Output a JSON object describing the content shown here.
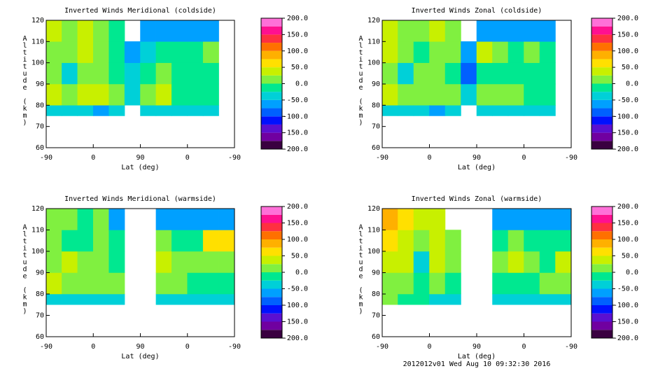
{
  "chart_data": [
    {
      "type": "contour",
      "title": "Inverted Winds Meridional (coldside)",
      "xlabel": "Lat (deg)",
      "ylabel": "Altitude (km)",
      "xlim": [
        0,
        360
      ],
      "xticks": [
        {
          "value": 0,
          "label": "-90"
        },
        {
          "value": 90,
          "label": "0"
        },
        {
          "value": 180,
          "label": "90"
        },
        {
          "value": 270,
          "label": "0"
        },
        {
          "value": 360,
          "label": "-90"
        }
      ],
      "ylim": [
        60,
        120
      ],
      "yticks": [
        60,
        70,
        80,
        90,
        100,
        110,
        120
      ],
      "x_edges": [
        0,
        30,
        60,
        90,
        120,
        150,
        180,
        210,
        240,
        270,
        300,
        330,
        360
      ],
      "y_edges": [
        75,
        80,
        90,
        100,
        110,
        120
      ],
      "z": [
        [
          -50,
          25,
          0,
          0,
          25
        ],
        [
          -50,
          0,
          -50,
          0,
          0
        ],
        [
          -50,
          25,
          0,
          25,
          25
        ],
        [
          -75,
          25,
          0,
          0,
          0
        ],
        [
          -50,
          0,
          -25,
          -25,
          -25
        ],
        [
          null,
          -50,
          -50,
          -75,
          null
        ],
        [
          -50,
          0,
          -25,
          -50,
          -75
        ],
        [
          -50,
          25,
          0,
          -25,
          -75
        ],
        [
          -50,
          -25,
          -25,
          -25,
          -75
        ],
        [
          -50,
          -25,
          -25,
          -25,
          -75
        ],
        [
          -50,
          -25,
          -25,
          0,
          -75
        ],
        [
          null,
          null,
          null,
          null,
          null
        ]
      ],
      "colorbar": {
        "levels": [
          -200,
          -175,
          -150,
          -125,
          -100,
          -75,
          -50,
          -25,
          0,
          25,
          50,
          75,
          100,
          125,
          150,
          175,
          200
        ],
        "colors": [
          "#3a0040",
          "#7000a0",
          "#5a10d0",
          "#0010ff",
          "#0060ff",
          "#00a0ff",
          "#00d0d8",
          "#00e890",
          "#80f040",
          "#c8f000",
          "#ffe000",
          "#ffb000",
          "#ff7000",
          "#ff3040",
          "#ff1090",
          "#ff70d8"
        ],
        "ticks": [
          {
            "value": -200,
            "label": "-200.0"
          },
          {
            "value": -150,
            "label": "-150.0"
          },
          {
            "value": -100,
            "label": "-100.0"
          },
          {
            "value": -50,
            "label": "-50.0"
          },
          {
            "value": 0,
            "label": "0.0"
          },
          {
            "value": 50,
            "label": "50.0"
          },
          {
            "value": 100,
            "label": "100.0"
          },
          {
            "value": 150,
            "label": "150.0"
          },
          {
            "value": 200,
            "label": "200.0"
          }
        ]
      }
    },
    {
      "type": "contour",
      "title": "Inverted Winds Zonal (coldside)",
      "xlabel": "Lat (deg)",
      "ylabel": "Altitude (km)",
      "xlim": [
        0,
        360
      ],
      "xticks": [
        {
          "value": 0,
          "label": "-90"
        },
        {
          "value": 90,
          "label": "0"
        },
        {
          "value": 180,
          "label": "90"
        },
        {
          "value": 270,
          "label": "0"
        },
        {
          "value": 360,
          "label": "-90"
        }
      ],
      "ylim": [
        60,
        120
      ],
      "yticks": [
        60,
        70,
        80,
        90,
        100,
        110,
        120
      ],
      "x_edges": [
        0,
        30,
        60,
        90,
        120,
        150,
        180,
        210,
        240,
        270,
        300,
        330,
        360
      ],
      "y_edges": [
        75,
        80,
        90,
        100,
        110,
        120
      ],
      "z": [
        [
          -50,
          25,
          0,
          25,
          25
        ],
        [
          -50,
          0,
          -50,
          0,
          0
        ],
        [
          -50,
          0,
          0,
          -25,
          0
        ],
        [
          -75,
          0,
          0,
          0,
          25
        ],
        [
          -50,
          0,
          -25,
          0,
          0
        ],
        [
          null,
          -50,
          -100,
          -75,
          null
        ],
        [
          -50,
          0,
          -25,
          25,
          -75
        ],
        [
          -50,
          0,
          -25,
          0,
          -75
        ],
        [
          -50,
          0,
          -25,
          -25,
          -75
        ],
        [
          -50,
          -25,
          -25,
          0,
          -75
        ],
        [
          -50,
          -25,
          -25,
          -25,
          -75
        ],
        [
          null,
          null,
          null,
          null,
          null
        ]
      ],
      "colorbar": {
        "levels": [
          -200,
          -175,
          -150,
          -125,
          -100,
          -75,
          -50,
          -25,
          0,
          25,
          50,
          75,
          100,
          125,
          150,
          175,
          200
        ],
        "colors": [
          "#3a0040",
          "#7000a0",
          "#5a10d0",
          "#0010ff",
          "#0060ff",
          "#00a0ff",
          "#00d0d8",
          "#00e890",
          "#80f040",
          "#c8f000",
          "#ffe000",
          "#ffb000",
          "#ff7000",
          "#ff3040",
          "#ff1090",
          "#ff70d8"
        ],
        "ticks": [
          {
            "value": -200,
            "label": "-200.0"
          },
          {
            "value": -150,
            "label": "-150.0"
          },
          {
            "value": -100,
            "label": "-100.0"
          },
          {
            "value": -50,
            "label": "-50.0"
          },
          {
            "value": 0,
            "label": "0.0"
          },
          {
            "value": 50,
            "label": "50.0"
          },
          {
            "value": 100,
            "label": "100.0"
          },
          {
            "value": 150,
            "label": "150.0"
          },
          {
            "value": 200,
            "label": "200.0"
          }
        ]
      }
    },
    {
      "type": "contour",
      "title": "Inverted Winds Meridional (warmside)",
      "xlabel": "Lat (deg)",
      "ylabel": "Altitude (km)",
      "xlim": [
        0,
        360
      ],
      "xticks": [
        {
          "value": 0,
          "label": "-90"
        },
        {
          "value": 90,
          "label": "0"
        },
        {
          "value": 180,
          "label": "90"
        },
        {
          "value": 270,
          "label": "0"
        },
        {
          "value": 360,
          "label": "-90"
        }
      ],
      "ylim": [
        60,
        120
      ],
      "yticks": [
        60,
        70,
        80,
        90,
        100,
        110,
        120
      ],
      "x_edges": [
        0,
        30,
        60,
        90,
        120,
        150,
        180,
        210,
        240,
        270,
        300,
        330,
        360
      ],
      "y_edges": [
        75,
        80,
        90,
        100,
        110,
        120
      ],
      "z": [
        [
          -50,
          25,
          0,
          0,
          0
        ],
        [
          -50,
          0,
          25,
          -25,
          0
        ],
        [
          -50,
          0,
          0,
          -25,
          -25
        ],
        [
          -50,
          0,
          0,
          0,
          0
        ],
        [
          -50,
          0,
          -25,
          -25,
          -75
        ],
        [
          null,
          null,
          null,
          null,
          null
        ],
        [
          null,
          null,
          null,
          null,
          null
        ],
        [
          -50,
          0,
          25,
          0,
          -75
        ],
        [
          -50,
          0,
          0,
          -25,
          -75
        ],
        [
          -50,
          -25,
          0,
          -25,
          -75
        ],
        [
          -50,
          -25,
          0,
          50,
          -75
        ],
        [
          -50,
          -25,
          0,
          50,
          -75
        ]
      ],
      "colorbar": {
        "levels": [
          -200,
          -175,
          -150,
          -125,
          -100,
          -75,
          -50,
          -25,
          0,
          25,
          50,
          75,
          100,
          125,
          150,
          175,
          200
        ],
        "colors": [
          "#3a0040",
          "#7000a0",
          "#5a10d0",
          "#0010ff",
          "#0060ff",
          "#00a0ff",
          "#00d0d8",
          "#00e890",
          "#80f040",
          "#c8f000",
          "#ffe000",
          "#ffb000",
          "#ff7000",
          "#ff3040",
          "#ff1090",
          "#ff70d8"
        ],
        "ticks": [
          {
            "value": -200,
            "label": "-200.0"
          },
          {
            "value": -150,
            "label": "-150.0"
          },
          {
            "value": -100,
            "label": "-100.0"
          },
          {
            "value": -50,
            "label": "-50.0"
          },
          {
            "value": 0,
            "label": "0.0"
          },
          {
            "value": 50,
            "label": "50.0"
          },
          {
            "value": 100,
            "label": "100.0"
          },
          {
            "value": 150,
            "label": "150.0"
          },
          {
            "value": 200,
            "label": "200.0"
          }
        ]
      }
    },
    {
      "type": "contour",
      "title": "Inverted Winds Zonal (warmside)",
      "xlabel": "Lat (deg)",
      "ylabel": "Altitude (km)",
      "xlim": [
        0,
        360
      ],
      "xticks": [
        {
          "value": 0,
          "label": "-90"
        },
        {
          "value": 90,
          "label": "0"
        },
        {
          "value": 180,
          "label": "90"
        },
        {
          "value": 270,
          "label": "0"
        },
        {
          "value": 360,
          "label": "-90"
        }
      ],
      "ylim": [
        60,
        120
      ],
      "yticks": [
        60,
        70,
        80,
        90,
        100,
        110,
        120
      ],
      "x_edges": [
        0,
        30,
        60,
        90,
        120,
        150,
        180,
        210,
        240,
        270,
        300,
        330,
        360
      ],
      "y_edges": [
        75,
        80,
        90,
        100,
        110,
        120
      ],
      "z": [
        [
          0,
          0,
          25,
          50,
          75
        ],
        [
          -25,
          0,
          25,
          25,
          50
        ],
        [
          -25,
          -25,
          -50,
          0,
          25
        ],
        [
          -50,
          0,
          25,
          25,
          25
        ],
        [
          -50,
          -25,
          0,
          0,
          null
        ],
        [
          null,
          null,
          null,
          null,
          null
        ],
        [
          null,
          null,
          null,
          null,
          null
        ],
        [
          -50,
          -25,
          0,
          -25,
          -75
        ],
        [
          -50,
          -25,
          25,
          0,
          -75
        ],
        [
          -50,
          -25,
          0,
          -25,
          -75
        ],
        [
          -50,
          0,
          -25,
          -25,
          -75
        ],
        [
          -50,
          0,
          25,
          -25,
          -75
        ]
      ],
      "colorbar": {
        "levels": [
          -200,
          -175,
          -150,
          -125,
          -100,
          -75,
          -50,
          -25,
          0,
          25,
          50,
          75,
          100,
          125,
          150,
          175,
          200
        ],
        "colors": [
          "#3a0040",
          "#7000a0",
          "#5a10d0",
          "#0010ff",
          "#0060ff",
          "#00a0ff",
          "#00d0d8",
          "#00e890",
          "#80f040",
          "#c8f000",
          "#ffe000",
          "#ffb000",
          "#ff7000",
          "#ff3040",
          "#ff1090",
          "#ff70d8"
        ],
        "ticks": [
          {
            "value": -200,
            "label": "-200.0"
          },
          {
            "value": -150,
            "label": "-150.0"
          },
          {
            "value": -100,
            "label": "-100.0"
          },
          {
            "value": -50,
            "label": "-50.0"
          },
          {
            "value": 0,
            "label": "0.0"
          },
          {
            "value": 50,
            "label": "50.0"
          },
          {
            "value": 100,
            "label": "100.0"
          },
          {
            "value": 150,
            "label": "150.0"
          },
          {
            "value": 200,
            "label": "200.0"
          }
        ]
      }
    }
  ],
  "footer": "2012012v01 Wed Aug 10 09:32:30 2016"
}
